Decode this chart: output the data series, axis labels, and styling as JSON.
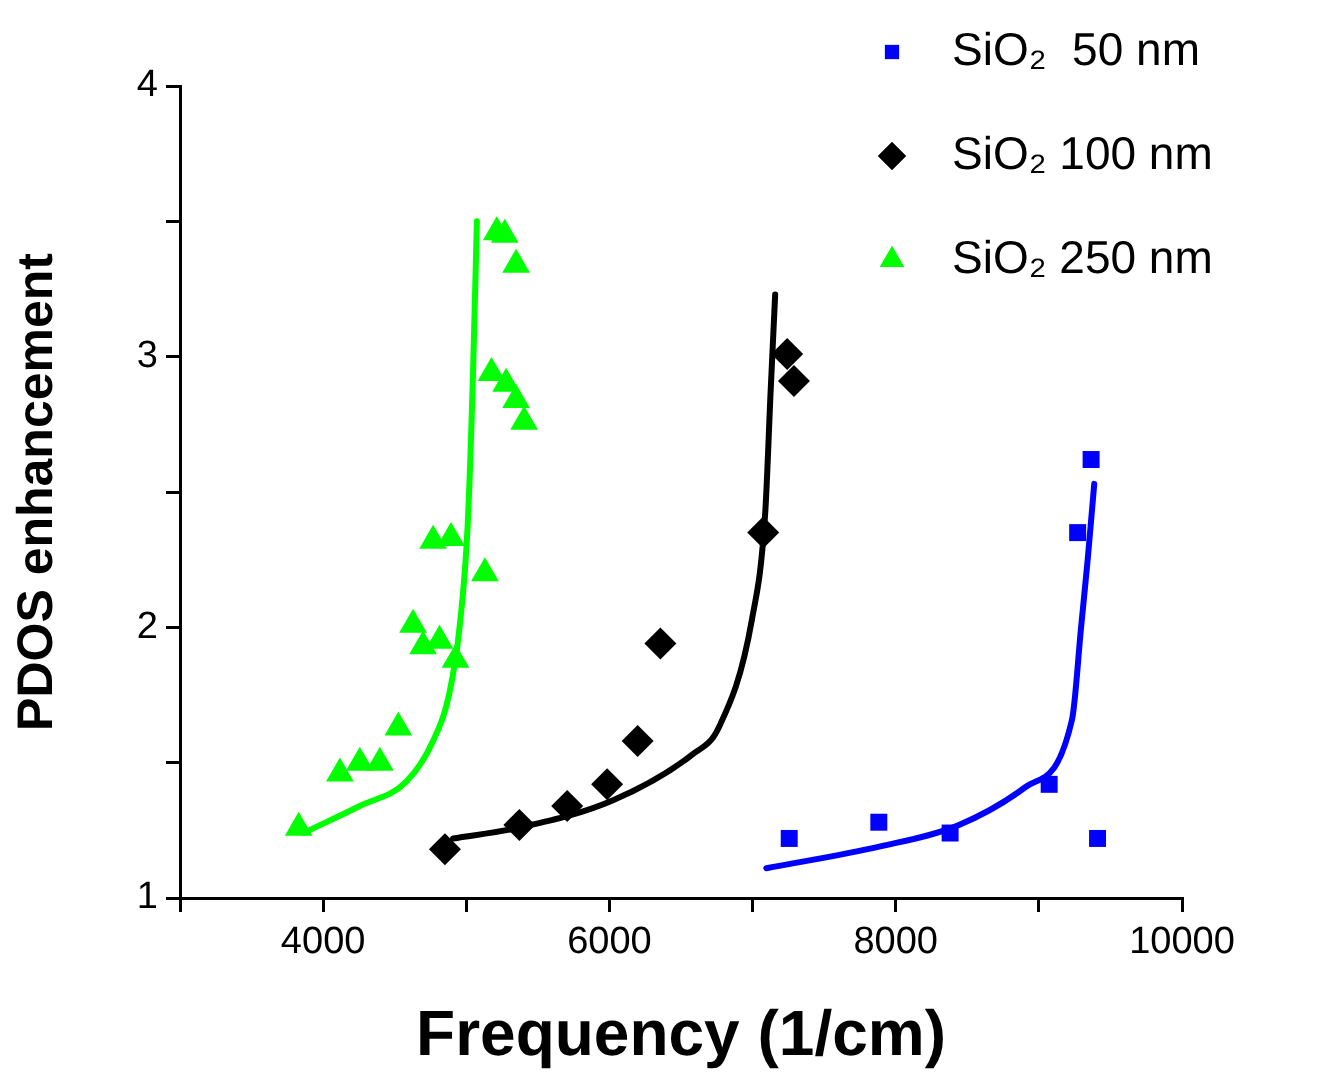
{
  "chart_data": {
    "type": "scatter",
    "xlabel": "Frequency (1/cm)",
    "ylabel": "PDOS enhancement",
    "xlim": [
      3000,
      10000
    ],
    "xticks": [
      {
        "value": 3000,
        "label": null
      },
      4000,
      {
        "value": 5000,
        "label": null
      },
      6000,
      {
        "value": 7000,
        "label": null
      },
      8000,
      {
        "value": 9000,
        "label": null
      },
      10000
    ],
    "ylim": [
      1,
      4
    ],
    "yticks": [
      1,
      {
        "value": 1.5,
        "label": null
      },
      2,
      {
        "value": 2.5,
        "label": null
      },
      3,
      {
        "value": 3.5,
        "label": null
      },
      4
    ],
    "grid": false,
    "legend": "top right",
    "series": [
      {
        "name": "SiO₂  50 nm",
        "type": "scatter",
        "marker": "square",
        "color": "#0000ff",
        "x": [
          7256,
          7882,
          8380,
          9072,
          9271,
          9365,
          9410
        ],
        "values": [
          1.22,
          1.28,
          1.24,
          1.42,
          2.35,
          2.62,
          1.22
        ]
      },
      {
        "name": "SiO₂ 100 nm",
        "type": "scatter",
        "marker": "diamond",
        "color": "#000000",
        "x": [
          4851,
          5371,
          5705,
          5984,
          6197,
          6356,
          7074,
          7242,
          7289
        ],
        "values": [
          1.18,
          1.27,
          1.34,
          1.42,
          1.58,
          1.94,
          2.35,
          3.01,
          2.91
        ]
      },
      {
        "name": "SiO₂ 250 nm",
        "type": "scatter",
        "marker": "triangle",
        "color": "#00ff00",
        "x": [
          3829,
          4117,
          4256,
          4396,
          4525,
          4628,
          4698,
          4813,
          4925,
          4768,
          4893,
          5130,
          5176,
          5278,
          5348,
          5404,
          5213,
          5269,
          5348
        ],
        "values": [
          1.26,
          1.46,
          1.5,
          1.5,
          1.63,
          2.01,
          1.93,
          1.95,
          1.88,
          2.32,
          2.33,
          2.2,
          2.94,
          2.9,
          2.84,
          2.76,
          3.46,
          3.45,
          3.34
        ]
      },
      {
        "type": "line",
        "marker": "none",
        "color": "#0000ff",
        "x": [
          7096,
          7885,
          8442,
          8907,
          9232,
          9295,
          9341,
          9387
        ],
        "values": [
          1.11,
          1.19,
          1.27,
          1.41,
          1.66,
          2.0,
          2.25,
          2.53
        ]
      },
      {
        "type": "line",
        "marker": "none",
        "color": "#000000",
        "x": [
          4907,
          5371,
          6021,
          6578,
          6764,
          6996,
          7088,
          7126,
          7158
        ],
        "values": [
          1.22,
          1.26,
          1.36,
          1.53,
          1.63,
          2.03,
          2.42,
          2.87,
          3.23
        ]
      },
      {
        "type": "line",
        "marker": "none",
        "color": "#00ff00",
        "x": [
          3862,
          4256,
          4581,
          4768,
          4883,
          4953,
          5009,
          5046,
          5074
        ],
        "values": [
          1.24,
          1.34,
          1.43,
          1.58,
          1.76,
          2.0,
          2.37,
          2.92,
          3.5
        ]
      }
    ]
  }
}
